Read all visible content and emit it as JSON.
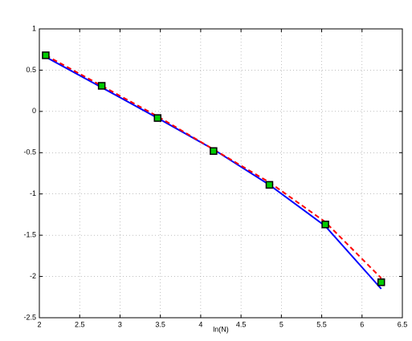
{
  "chart_data": {
    "type": "line",
    "x_label": "ln(N)",
    "x": [
      2.079,
      2.773,
      3.466,
      4.159,
      4.852,
      5.545,
      6.238
    ],
    "series": [
      {
        "color": "#0000ff",
        "line": "solid",
        "values": [
          0.66,
          0.29,
          -0.08,
          -0.46,
          -0.89,
          -1.39,
          -2.15
        ]
      },
      {
        "color": "#ff0000",
        "line": "dashed",
        "values": [
          0.68,
          0.31,
          -0.06,
          -0.46,
          -0.86,
          -1.34,
          -2.02
        ]
      },
      {
        "color": "#00cc00",
        "line": "none",
        "marker": "square",
        "values": [
          0.68,
          0.31,
          -0.08,
          -0.48,
          -0.89,
          -1.37,
          -2.07
        ]
      }
    ],
    "xlim": [
      2,
      6.5
    ],
    "xticks": [
      2,
      2.5,
      3,
      3.5,
      4,
      4.5,
      5,
      5.5,
      6,
      6.5
    ],
    "ylim": [
      -2.5,
      1
    ],
    "yticks": [
      -2.5,
      -2,
      -1.5,
      -1,
      -0.5,
      0,
      0.5,
      1
    ],
    "grid": true
  }
}
